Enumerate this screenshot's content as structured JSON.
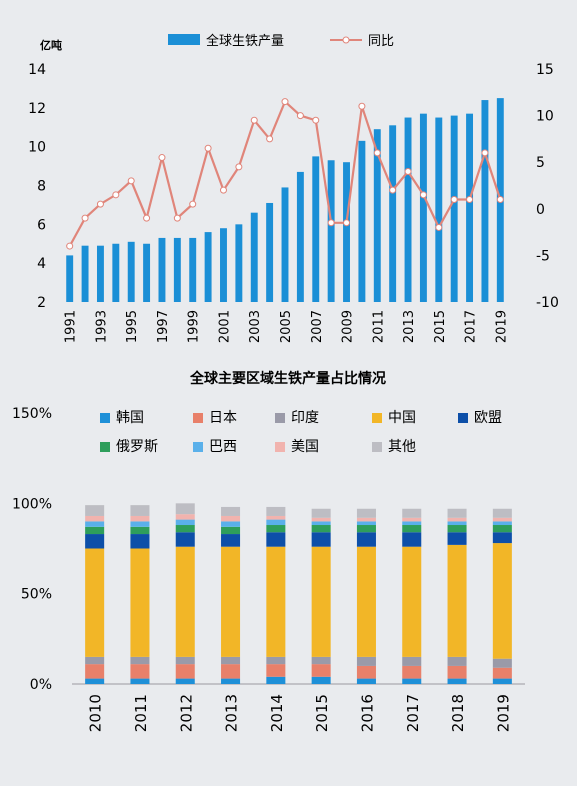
{
  "chart_data": [
    {
      "type": "bar+line",
      "unit_label": "亿吨",
      "legend": {
        "placement": "top",
        "bar_label": "全球生铁产量",
        "line_label": "同比"
      },
      "x": [
        "1991",
        "1992",
        "1993",
        "1994",
        "1995",
        "1996",
        "1997",
        "1998",
        "1999",
        "2000",
        "2001",
        "2002",
        "2003",
        "2004",
        "2005",
        "2006",
        "2007",
        "2008",
        "2009",
        "2010",
        "2011",
        "2012",
        "2013",
        "2014",
        "2015",
        "2016",
        "2017",
        "2018",
        "2019"
      ],
      "x_tick_labels": [
        "1991",
        "1993",
        "1995",
        "1997",
        "1999",
        "2001",
        "2003",
        "2005",
        "2007",
        "2009",
        "2011",
        "2013",
        "2015",
        "2017",
        "2019"
      ],
      "series": [
        {
          "name": "全球生铁产量",
          "type": "bar",
          "axis": "left",
          "color": "#1b8fd6",
          "values": [
            4.4,
            4.9,
            4.9,
            5.0,
            5.1,
            5.0,
            5.3,
            5.3,
            5.3,
            5.6,
            5.8,
            6.0,
            6.6,
            7.1,
            7.9,
            8.7,
            9.5,
            9.3,
            9.2,
            10.3,
            10.9,
            11.1,
            11.5,
            11.7,
            11.5,
            11.6,
            11.7,
            12.4,
            12.5
          ]
        },
        {
          "name": "同比",
          "type": "line",
          "axis": "right",
          "color": "#e0857a",
          "values": [
            -4.0,
            -1.0,
            0.5,
            1.5,
            3.0,
            -1.0,
            5.5,
            -1.0,
            0.5,
            6.5,
            2.0,
            4.5,
            9.5,
            7.5,
            11.5,
            10.0,
            9.5,
            -1.5,
            -1.5,
            11.0,
            6.0,
            2.0,
            4.0,
            1.5,
            -2.0,
            1.0,
            1.0,
            6.0,
            1.0
          ]
        }
      ],
      "y_left": {
        "min": 2,
        "max": 14,
        "ticks": [
          "2",
          "4",
          "6",
          "8",
          "10",
          "12",
          "14"
        ]
      },
      "y_right": {
        "min": -10,
        "max": 15,
        "ticks": [
          "-10",
          "-5",
          "0",
          "5",
          "10",
          "15"
        ]
      },
      "grid": false
    },
    {
      "type": "stacked-bar",
      "title": "全球主要区域生铁产量占比情况",
      "categories": [
        "2010",
        "2011",
        "2012",
        "2013",
        "2014",
        "2015",
        "2016",
        "2017",
        "2018",
        "2019"
      ],
      "y_ticks": [
        "0%",
        "50%",
        "100%",
        "150%"
      ],
      "ylim": [
        0,
        150
      ],
      "legend": {
        "placement": "top"
      },
      "series": [
        {
          "name": "韩国",
          "color": "#1e90d8",
          "values": [
            3,
            3,
            3,
            3,
            4,
            4,
            3,
            3,
            3,
            3
          ]
        },
        {
          "name": "日本",
          "color": "#e8806a",
          "values": [
            8,
            8,
            8,
            8,
            7,
            7,
            7,
            7,
            7,
            6
          ]
        },
        {
          "name": "印度",
          "color": "#9a9aa8",
          "values": [
            4,
            4,
            4,
            4,
            4,
            4,
            5,
            5,
            5,
            5
          ]
        },
        {
          "name": "中国",
          "color": "#f2b627",
          "values": [
            60,
            60,
            61,
            61,
            61,
            61,
            61,
            61,
            62,
            64
          ]
        },
        {
          "name": "欧盟",
          "color": "#0d4fa8",
          "values": [
            8,
            8,
            8,
            7,
            8,
            8,
            8,
            8,
            7,
            6
          ]
        },
        {
          "name": "俄罗斯",
          "color": "#2e9e5b",
          "values": [
            4,
            4,
            4,
            4,
            4,
            4,
            4,
            4,
            4,
            4
          ]
        },
        {
          "name": "巴西",
          "color": "#5ab0ea",
          "values": [
            3,
            3,
            3,
            3,
            3,
            2,
            2,
            2,
            2,
            2
          ]
        },
        {
          "name": "美国",
          "color": "#f1b3ae",
          "values": [
            3,
            3,
            3,
            3,
            2,
            2,
            2,
            2,
            2,
            2
          ]
        },
        {
          "name": "其他",
          "color": "#bdbdc3",
          "values": [
            6,
            6,
            6,
            5,
            5,
            5,
            5,
            5,
            5,
            5
          ]
        }
      ]
    }
  ]
}
